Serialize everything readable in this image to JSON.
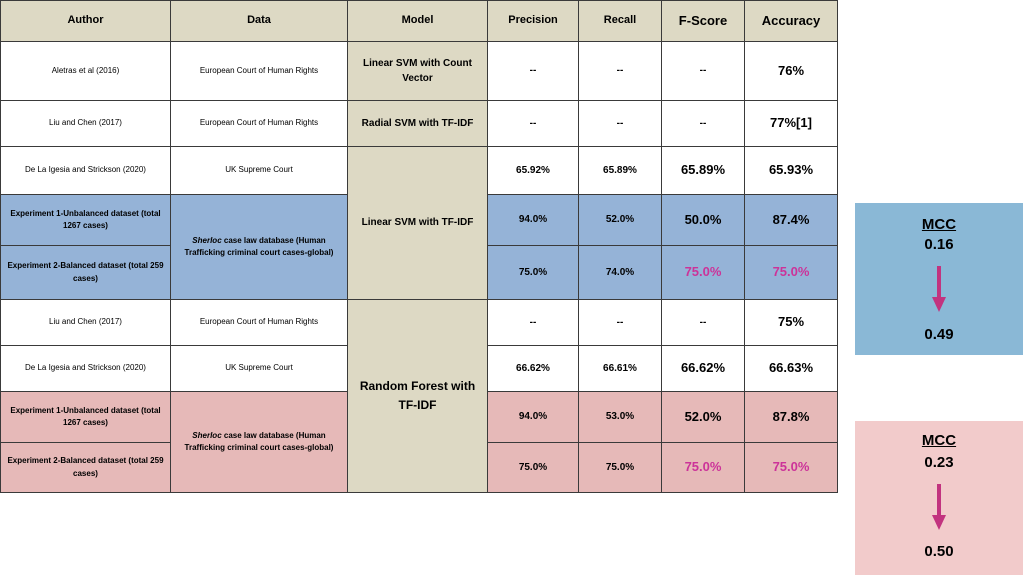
{
  "headers": {
    "author": "Author",
    "data": "Data",
    "model": "Model",
    "precision": "Precision",
    "recall": "Recall",
    "fscore": "F-Score",
    "accuracy": "Accuracy"
  },
  "rows": [
    {
      "author": "Aletras et al (2016)",
      "data": "European Court of Human Rights",
      "model": "Linear SVM with Count Vector",
      "precision": "--",
      "recall": "--",
      "fscore": "--",
      "accuracy": "76%"
    },
    {
      "author": "Liu and Chen (2017)",
      "data": "European Court of Human Rights",
      "model": "Radial SVM with TF-IDF",
      "precision": "--",
      "recall": "--",
      "fscore": "--",
      "accuracy": "77%[1]"
    },
    {
      "author": "De La Igesia and Strickson (2020)",
      "data": "UK Supreme Court",
      "precision": "65.92%",
      "recall": "65.89%",
      "fscore": "65.89%",
      "accuracy": "65.93%"
    },
    {
      "author": "Experiment 1-Unbalanced dataset (total 1267 cases)",
      "precision": "94.0%",
      "recall": "52.0%",
      "fscore": "50.0%",
      "accuracy": "87.4%"
    },
    {
      "author": "Experiment 2-Balanced dataset (total 259 cases)",
      "precision": "75.0%",
      "recall": "74.0%",
      "fscore": "75.0%",
      "accuracy": "75.0%"
    },
    {
      "author": "Liu and Chen (2017)",
      "data": "European Court of Human Rights",
      "precision": "--",
      "recall": "--",
      "fscore": "--",
      "accuracy": "75%"
    },
    {
      "author": "De La Igesia and Strickson (2020)",
      "data": "UK Supreme Court",
      "precision": "66.62%",
      "recall": "66.61%",
      "fscore": "66.62%",
      "accuracy": "66.63%"
    },
    {
      "author": "Experiment 1-Unbalanced dataset (total 1267 cases)",
      "precision": "94.0%",
      "recall": "53.0%",
      "fscore": "52.0%",
      "accuracy": "87.8%"
    },
    {
      "author": "Experiment 2-Balanced dataset (total 259 cases)",
      "precision": "75.0%",
      "recall": "75.0%",
      "fscore": "75.0%",
      "accuracy": "75.0%"
    }
  ],
  "merged": {
    "model_svm": "Linear SVM with TF-IDF",
    "model_rf": "Random Forest with TF-IDF",
    "sherloc_name": "Sherloc",
    "sherloc_rest": " case law database (Human Trafficking criminal court cases-global)"
  },
  "mcc": [
    {
      "label": "MCC",
      "from": "0.16",
      "to": "0.49",
      "color": "#8ab8d6"
    },
    {
      "label": "MCC",
      "from": "0.23",
      "to": "0.50",
      "color": "#f2cbcb"
    }
  ],
  "colors": {
    "header": "#ddd9c4",
    "blue_rows": "#95b3d7",
    "pink_rows": "#e6b9b8",
    "highlight_text": "#cc3399",
    "arrow": "#c2337f"
  }
}
